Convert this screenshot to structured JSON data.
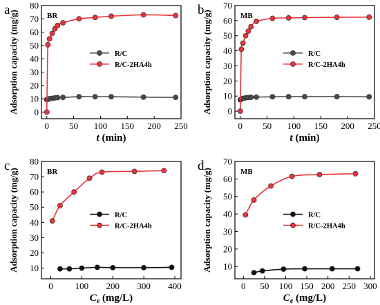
{
  "chart_data": [
    {
      "panel_letter": "a",
      "type": "line",
      "inset_label": "BR",
      "xlabel_main": "t",
      "xlabel_rest": " (min)",
      "ylabel": "Adsorption capacity (mg/g)",
      "xlim": [
        -10,
        250
      ],
      "ylim": [
        -5,
        80
      ],
      "xticks": [
        0,
        50,
        100,
        150,
        200,
        250
      ],
      "yticks": [
        0,
        10,
        20,
        30,
        40,
        50,
        60,
        70,
        80
      ],
      "legend_position": "center-right",
      "series": [
        {
          "name": "R/C",
          "color": "#4a4a4a",
          "x": [
            0,
            2,
            5,
            10,
            15,
            20,
            30,
            60,
            90,
            120,
            180,
            240
          ],
          "y": [
            9.3,
            9.6,
            10.0,
            10.3,
            10.6,
            10.8,
            11.0,
            11.5,
            11.5,
            11.5,
            11.2,
            11.0
          ]
        },
        {
          "name": "R/C-2HA4h",
          "color": "#e8353b",
          "x": [
            0,
            2,
            5,
            10,
            15,
            20,
            30,
            60,
            90,
            120,
            180,
            240
          ],
          "y": [
            0,
            50.5,
            55.0,
            59.0,
            62.5,
            65.0,
            67.0,
            70.0,
            71.0,
            72.0,
            73.0,
            72.5
          ]
        }
      ]
    },
    {
      "panel_letter": "b",
      "type": "line",
      "inset_label": "MB",
      "xlabel_main": "t",
      "xlabel_rest": " (min)",
      "ylabel": "Adsorption capacity (mg/g)",
      "xlim": [
        -10,
        250
      ],
      "ylim": [
        -5,
        70
      ],
      "xticks": [
        0,
        50,
        100,
        150,
        200,
        250
      ],
      "yticks": [
        0,
        10,
        20,
        30,
        40,
        50,
        60,
        70
      ],
      "legend_position": "center-right",
      "series": [
        {
          "name": "R/C",
          "color": "#4a4a4a",
          "x": [
            0,
            2,
            5,
            10,
            15,
            20,
            30,
            60,
            90,
            120,
            180,
            240
          ],
          "y": [
            7.5,
            8.0,
            8.5,
            8.8,
            9.0,
            9.2,
            9.3,
            9.5,
            9.6,
            9.6,
            9.6,
            9.5
          ]
        },
        {
          "name": "R/C-2HA4h",
          "color": "#e8353b",
          "x": [
            0,
            2,
            5,
            10,
            15,
            20,
            30,
            60,
            90,
            120,
            180,
            240
          ],
          "y": [
            0,
            41.0,
            45.0,
            50.0,
            53.0,
            56.0,
            59.5,
            61.5,
            61.8,
            62.0,
            62.2,
            62.3
          ]
        }
      ]
    },
    {
      "panel_letter": "c",
      "type": "line",
      "inset_label": "BR",
      "xlabel_main": "C",
      "xlabel_sub": "e",
      "xlabel_rest": " (mg/L)",
      "ylabel": "Adsorption capacity (mg/g)",
      "xlim": [
        -30,
        420
      ],
      "ylim": [
        3,
        80
      ],
      "xticks": [
        0,
        100,
        200,
        300,
        400
      ],
      "yticks": [
        10,
        20,
        30,
        40,
        50,
        60,
        70,
        80
      ],
      "legend_position": "center-right",
      "series": [
        {
          "name": "R/C",
          "color": "#111111",
          "x": [
            30,
            60,
            100,
            150,
            200,
            300,
            390
          ],
          "y": [
            9.5,
            9.5,
            10.0,
            10.5,
            10.3,
            10.3,
            10.5
          ]
        },
        {
          "name": "R/C-2HA4h",
          "color": "#e8353b",
          "x": [
            5,
            30,
            75,
            125,
            165,
            270,
            365
          ],
          "y": [
            41.0,
            51.0,
            60.0,
            69.0,
            73.0,
            73.5,
            74.0
          ]
        }
      ]
    },
    {
      "panel_letter": "d",
      "type": "line",
      "inset_label": "MB",
      "xlabel_main": "C",
      "xlabel_sub": "e",
      "xlabel_rest": " (mg/L)",
      "ylabel": "Adsorption capacity (mg/g)",
      "xlim": [
        -20,
        310
      ],
      "ylim": [
        3,
        70
      ],
      "xticks": [
        0,
        50,
        100,
        150,
        200,
        250,
        300
      ],
      "yticks": [
        10,
        20,
        30,
        40,
        50,
        60,
        70
      ],
      "legend_position": "center-right",
      "series": [
        {
          "name": "R/C",
          "color": "#111111",
          "x": [
            25,
            45,
            95,
            145,
            210,
            270
          ],
          "y": [
            6.5,
            7.5,
            8.5,
            8.7,
            8.7,
            8.7
          ]
        },
        {
          "name": "R/C-2HA4h",
          "color": "#e8353b",
          "x": [
            5,
            25,
            65,
            115,
            180,
            265
          ],
          "y": [
            39.5,
            48.0,
            56.0,
            61.5,
            62.5,
            63.0
          ]
        }
      ]
    }
  ]
}
